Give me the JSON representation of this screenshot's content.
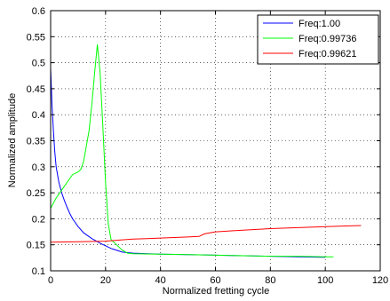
{
  "chart_data": {
    "type": "line",
    "title": "",
    "xlabel": "Normalized fretting cycle",
    "ylabel": "Normalized amplitude",
    "xlim": [
      0,
      120
    ],
    "ylim": [
      0.1,
      0.6
    ],
    "xticks": [
      "0",
      "20",
      "40",
      "60",
      "80",
      "100",
      "120"
    ],
    "yticks": [
      "0.1",
      "0.15",
      "0.2",
      "0.25",
      "0.3",
      "0.35",
      "0.4",
      "0.45",
      "0.5",
      "0.55",
      "0.6"
    ],
    "grid": true,
    "legend_position": "top-right",
    "series": [
      {
        "name": "Freq:1.00",
        "color": "#0000ff",
        "x": [
          0,
          0.5,
          1,
          1.5,
          2,
          3,
          4,
          5,
          6,
          7,
          8,
          10,
          12,
          15,
          18,
          22,
          26,
          30,
          40,
          50,
          60,
          70,
          80,
          90,
          100
        ],
        "y": [
          0.49,
          0.42,
          0.37,
          0.33,
          0.3,
          0.27,
          0.25,
          0.235,
          0.222,
          0.21,
          0.2,
          0.185,
          0.173,
          0.162,
          0.153,
          0.143,
          0.136,
          0.134,
          0.132,
          0.131,
          0.13,
          0.129,
          0.128,
          0.127,
          0.126
        ]
      },
      {
        "name": "Freq:0.99736",
        "color": "#00ff00",
        "x": [
          0,
          2,
          4,
          6,
          8,
          10,
          11,
          12,
          13,
          14,
          15,
          16,
          17,
          18,
          19,
          20,
          21,
          22,
          24,
          26,
          28,
          30,
          40,
          50,
          60,
          70,
          80,
          90,
          100,
          103
        ],
        "y": [
          0.22,
          0.24,
          0.255,
          0.27,
          0.285,
          0.29,
          0.295,
          0.31,
          0.34,
          0.37,
          0.42,
          0.48,
          0.535,
          0.48,
          0.38,
          0.27,
          0.19,
          0.16,
          0.15,
          0.14,
          0.134,
          0.133,
          0.132,
          0.131,
          0.13,
          0.129,
          0.128,
          0.128,
          0.127,
          0.127
        ]
      },
      {
        "name": "Freq:0.99621",
        "color": "#ff0000",
        "x": [
          0,
          10,
          20,
          25,
          30,
          35,
          40,
          50,
          54,
          56,
          60,
          70,
          80,
          90,
          100,
          113
        ],
        "y": [
          0.155,
          0.156,
          0.157,
          0.159,
          0.161,
          0.162,
          0.163,
          0.165,
          0.166,
          0.171,
          0.175,
          0.178,
          0.181,
          0.183,
          0.185,
          0.187
        ]
      }
    ]
  }
}
